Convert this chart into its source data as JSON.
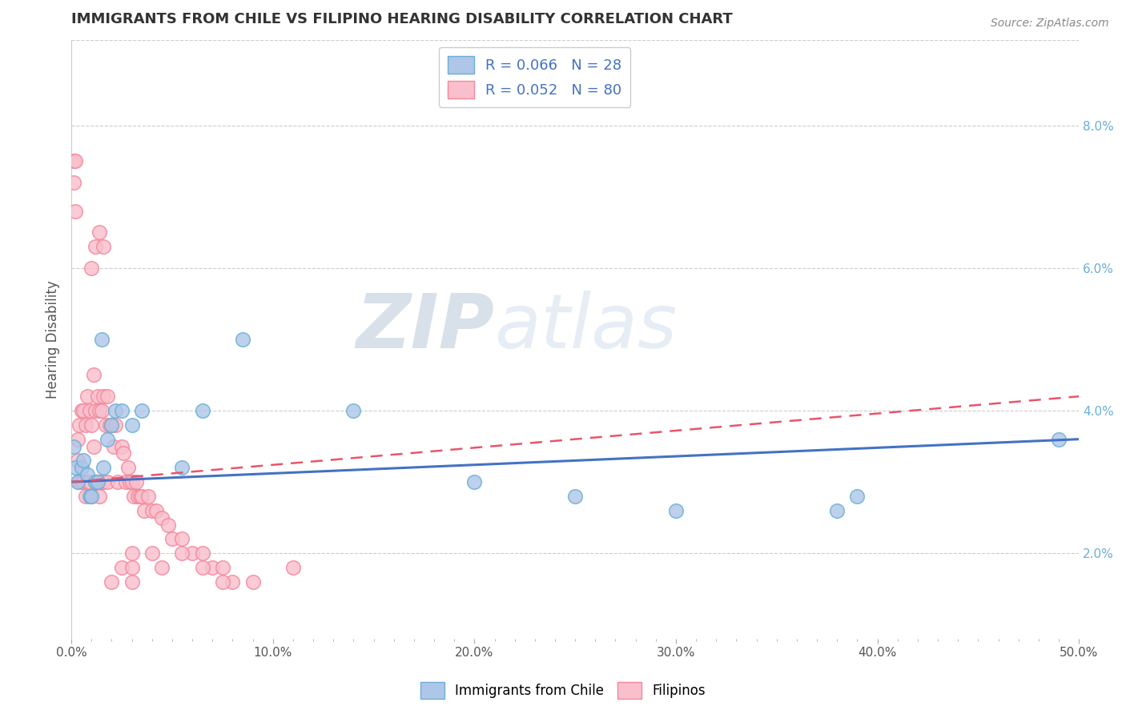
{
  "title": "IMMIGRANTS FROM CHILE VS FILIPINO HEARING DISABILITY CORRELATION CHART",
  "source_text": "Source: ZipAtlas.com",
  "ylabel": "Hearing Disability",
  "right_ytick_labels": [
    "2.0%",
    "4.0%",
    "6.0%",
    "8.0%"
  ],
  "right_ytick_values": [
    0.02,
    0.04,
    0.06,
    0.08
  ],
  "xlim": [
    0.0,
    0.5
  ],
  "ylim": [
    0.008,
    0.092
  ],
  "xtick_labels": [
    "0.0%",
    "",
    "",
    "",
    "",
    "",
    "",
    "",
    "",
    "",
    "10.0%",
    "",
    "",
    "",
    "",
    "",
    "",
    "",
    "",
    "",
    "20.0%",
    "",
    "",
    "",
    "",
    "",
    "",
    "",
    "",
    "",
    "30.0%",
    "",
    "",
    "",
    "",
    "",
    "",
    "",
    "",
    "",
    "40.0%",
    "",
    "",
    "",
    "",
    "",
    "",
    "",
    "",
    "",
    "50.0%"
  ],
  "xtick_values": [
    0.0,
    0.01,
    0.02,
    0.03,
    0.04,
    0.05,
    0.06,
    0.07,
    0.08,
    0.09,
    0.1,
    0.11,
    0.12,
    0.13,
    0.14,
    0.15,
    0.16,
    0.17,
    0.18,
    0.19,
    0.2,
    0.21,
    0.22,
    0.23,
    0.24,
    0.25,
    0.26,
    0.27,
    0.28,
    0.29,
    0.3,
    0.31,
    0.32,
    0.33,
    0.34,
    0.35,
    0.36,
    0.37,
    0.38,
    0.39,
    0.4,
    0.41,
    0.42,
    0.43,
    0.44,
    0.45,
    0.46,
    0.47,
    0.48,
    0.49,
    0.5
  ],
  "watermark_zip": "ZIP",
  "watermark_atlas": "atlas",
  "blue_color": "#6aaed6",
  "pink_color": "#f4879a",
  "blue_fill": "#aec6e8",
  "pink_fill": "#f9bfcc",
  "trend_blue_color": "#4472c4",
  "trend_pink_color": "#e8556a",
  "blue_scatter_x": [
    0.001,
    0.002,
    0.003,
    0.005,
    0.006,
    0.008,
    0.009,
    0.01,
    0.012,
    0.013,
    0.015,
    0.016,
    0.018,
    0.02,
    0.022,
    0.025,
    0.03,
    0.035,
    0.055,
    0.065,
    0.085,
    0.14,
    0.2,
    0.25,
    0.3,
    0.38,
    0.39,
    0.49
  ],
  "blue_scatter_y": [
    0.035,
    0.032,
    0.03,
    0.032,
    0.033,
    0.031,
    0.028,
    0.028,
    0.03,
    0.03,
    0.05,
    0.032,
    0.036,
    0.038,
    0.04,
    0.04,
    0.038,
    0.04,
    0.032,
    0.04,
    0.05,
    0.04,
    0.03,
    0.028,
    0.026,
    0.026,
    0.028,
    0.036
  ],
  "pink_scatter_x": [
    0.001,
    0.001,
    0.002,
    0.002,
    0.003,
    0.003,
    0.004,
    0.004,
    0.005,
    0.005,
    0.006,
    0.006,
    0.007,
    0.007,
    0.008,
    0.008,
    0.009,
    0.009,
    0.01,
    0.01,
    0.011,
    0.011,
    0.012,
    0.012,
    0.013,
    0.013,
    0.014,
    0.014,
    0.015,
    0.015,
    0.016,
    0.016,
    0.017,
    0.018,
    0.018,
    0.019,
    0.02,
    0.021,
    0.022,
    0.023,
    0.025,
    0.026,
    0.027,
    0.028,
    0.029,
    0.03,
    0.031,
    0.032,
    0.033,
    0.034,
    0.035,
    0.036,
    0.038,
    0.04,
    0.042,
    0.045,
    0.048,
    0.05,
    0.055,
    0.06,
    0.065,
    0.07,
    0.075,
    0.08,
    0.01,
    0.012,
    0.014,
    0.016,
    0.02,
    0.025,
    0.03,
    0.03,
    0.03,
    0.04,
    0.045,
    0.055,
    0.065,
    0.075,
    0.09,
    0.11
  ],
  "pink_scatter_y": [
    0.075,
    0.072,
    0.075,
    0.068,
    0.036,
    0.033,
    0.038,
    0.03,
    0.04,
    0.03,
    0.04,
    0.03,
    0.038,
    0.028,
    0.042,
    0.03,
    0.04,
    0.03,
    0.038,
    0.028,
    0.045,
    0.035,
    0.04,
    0.03,
    0.042,
    0.03,
    0.04,
    0.028,
    0.04,
    0.03,
    0.042,
    0.03,
    0.038,
    0.042,
    0.03,
    0.038,
    0.038,
    0.035,
    0.038,
    0.03,
    0.035,
    0.034,
    0.03,
    0.032,
    0.03,
    0.03,
    0.028,
    0.03,
    0.028,
    0.028,
    0.028,
    0.026,
    0.028,
    0.026,
    0.026,
    0.025,
    0.024,
    0.022,
    0.022,
    0.02,
    0.02,
    0.018,
    0.018,
    0.016,
    0.06,
    0.063,
    0.065,
    0.063,
    0.016,
    0.018,
    0.02,
    0.016,
    0.018,
    0.02,
    0.018,
    0.02,
    0.018,
    0.016,
    0.016,
    0.018
  ],
  "blue_trend_start_x": 0.0,
  "blue_trend_end_x": 0.5,
  "blue_trend_start_y": 0.03,
  "blue_trend_end_y": 0.036,
  "pink_trend_start_x": 0.0,
  "pink_trend_end_x": 0.5,
  "pink_trend_start_y": 0.03,
  "pink_trend_end_y": 0.042
}
